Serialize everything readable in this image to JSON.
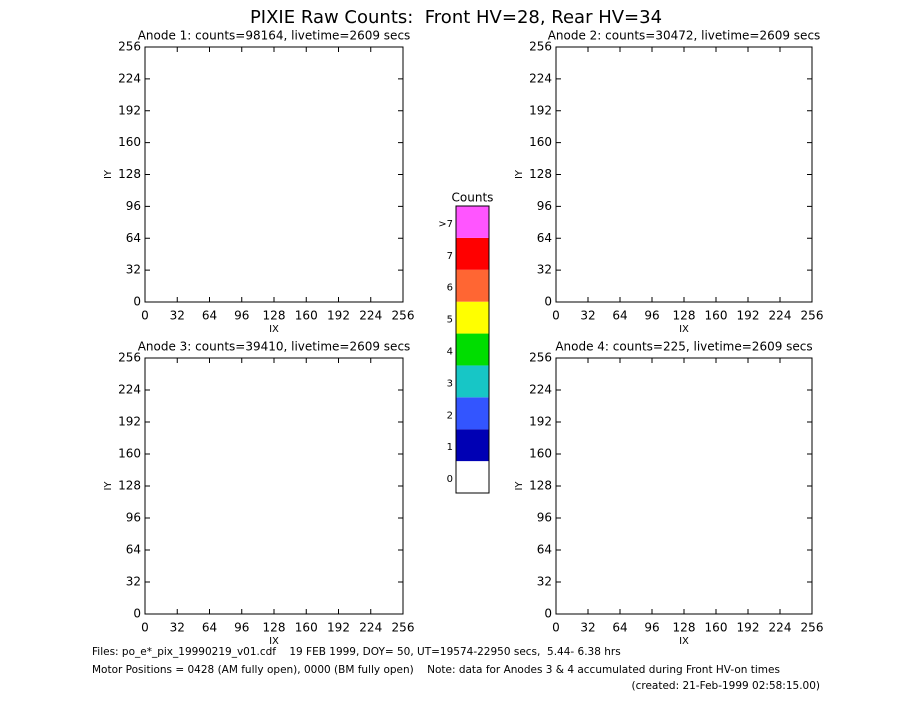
{
  "title": "PIXIE Raw Counts:  Front HV=28, Rear HV=34",
  "panels": [
    {
      "title": "Anode 1: counts=98164, livetime=2609 secs",
      "xlabel": "IX",
      "ylabel": "IY",
      "xlim": [
        0,
        256
      ],
      "ylim": [
        0,
        256
      ],
      "xticks": [
        0,
        32,
        64,
        96,
        128,
        160,
        192,
        224,
        256
      ],
      "yticks": [
        0,
        32,
        64,
        96,
        128,
        160,
        192,
        224,
        256
      ]
    },
    {
      "title": "Anode 2: counts=30472, livetime=2609 secs",
      "xlabel": "IX",
      "ylabel": "IY",
      "xlim": [
        0,
        256
      ],
      "ylim": [
        0,
        256
      ],
      "xticks": [
        0,
        32,
        64,
        96,
        128,
        160,
        192,
        224,
        256
      ],
      "yticks": [
        0,
        32,
        64,
        96,
        128,
        160,
        192,
        224,
        256
      ]
    },
    {
      "title": "Anode 3: counts=39410, livetime=2609 secs",
      "xlabel": "IX",
      "ylabel": "IY",
      "xlim": [
        0,
        256
      ],
      "ylim": [
        0,
        256
      ],
      "xticks": [
        0,
        32,
        64,
        96,
        128,
        160,
        192,
        224,
        256
      ],
      "yticks": [
        0,
        32,
        64,
        96,
        128,
        160,
        192,
        224,
        256
      ]
    },
    {
      "title": "Anode 4: counts=225, livetime=2609 secs",
      "xlabel": "IX",
      "ylabel": "IY",
      "xlim": [
        0,
        256
      ],
      "ylim": [
        0,
        256
      ],
      "xticks": [
        0,
        32,
        64,
        96,
        128,
        160,
        192,
        224,
        256
      ],
      "yticks": [
        0,
        32,
        64,
        96,
        128,
        160,
        192,
        224,
        256
      ]
    }
  ],
  "colorbar": {
    "title": "Counts",
    "levels": [
      {
        "label": "0",
        "color": "#ffffff"
      },
      {
        "label": "1",
        "color": "#0000b4"
      },
      {
        "label": "2",
        "color": "#3355ff"
      },
      {
        "label": "3",
        "color": "#17c6c6"
      },
      {
        "label": "4",
        "color": "#00dd00"
      },
      {
        "label": "5",
        "color": "#ffff00"
      },
      {
        "label": "6",
        "color": "#ff6633"
      },
      {
        "label": "7",
        "color": "#ff0000"
      },
      {
        "label": ">7",
        "color": "#ff55ff"
      }
    ]
  },
  "footer": [
    "Files: po_e*_pix_19990219_v01.cdf    19 FEB 1999, DOY= 50, UT=19574-22950 secs,  5.44- 6.38 hrs",
    "Motor Positions = 0428 (AM fully open), 0000 (BM fully open)    Note: data for Anodes 3 & 4 accumulated during Front HV-on times",
    "(created: 21-Feb-1999 02:58:15.00)"
  ]
}
